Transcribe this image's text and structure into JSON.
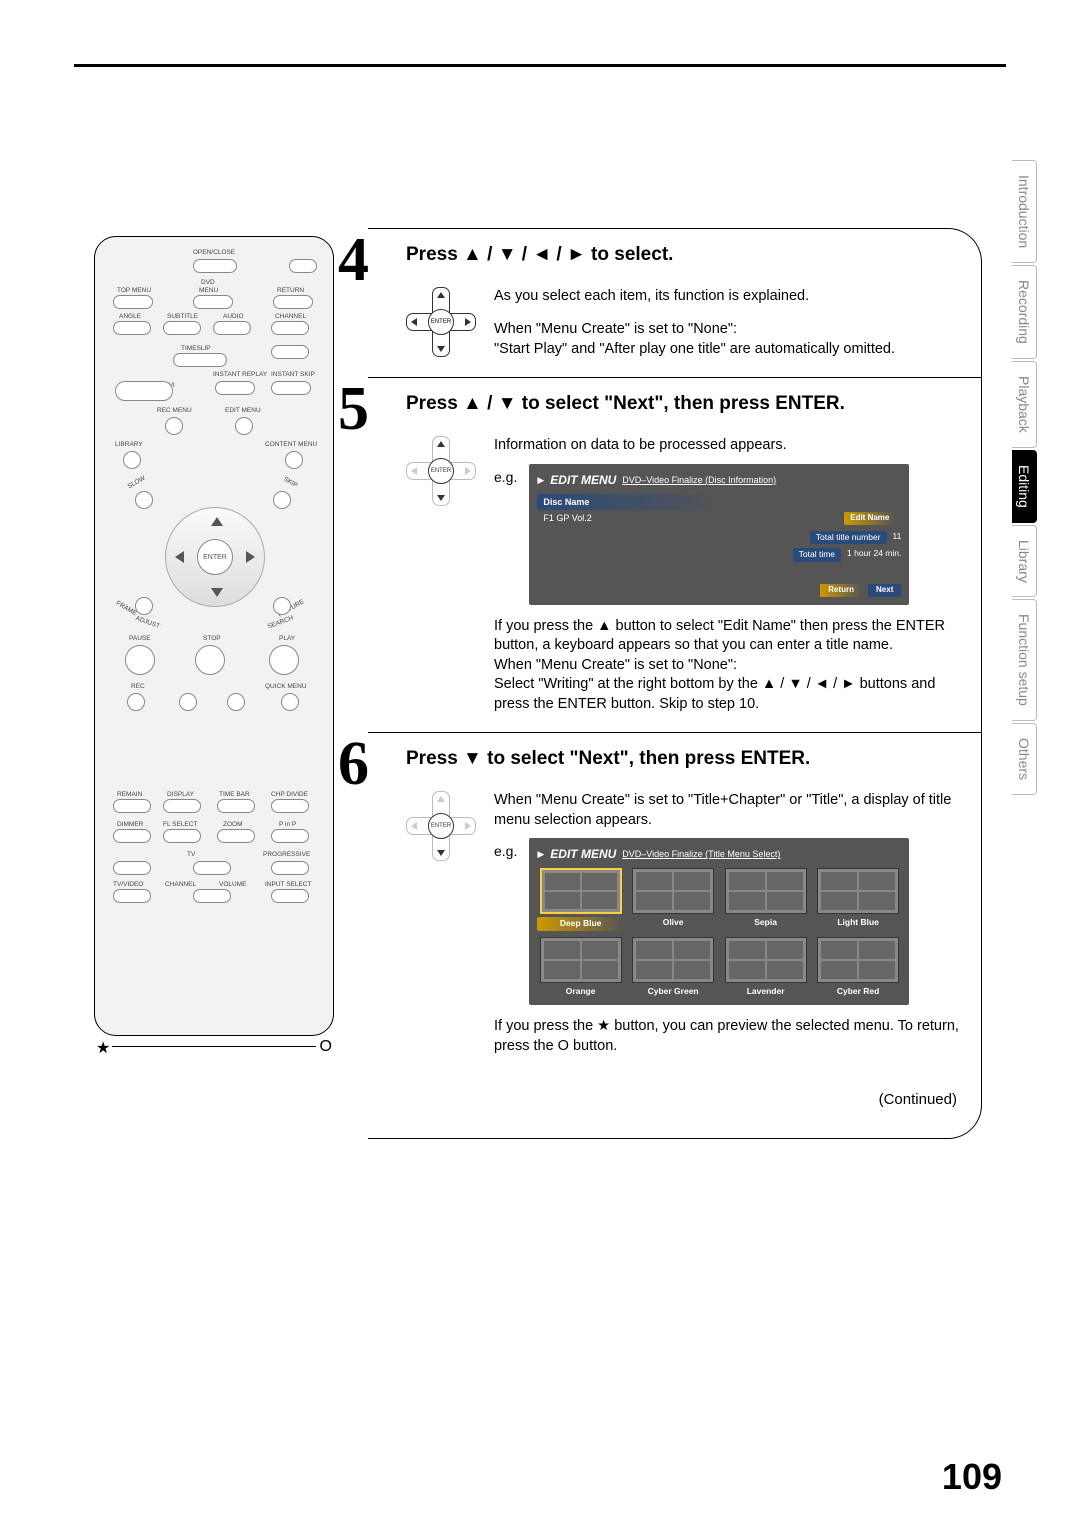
{
  "page_number": "109",
  "side_tabs": [
    "Introduction",
    "Recording",
    "Playback",
    "Editing",
    "Library",
    "Function setup",
    "Others"
  ],
  "active_tab_index": 3,
  "remote": {
    "labels": {
      "open_close": "OPEN/CLOSE",
      "dvd": "DVD",
      "top_menu": "TOP MENU",
      "menu": "MENU",
      "return": "RETURN",
      "angle": "ANGLE",
      "subtitle": "SUBTITLE",
      "audio": "AUDIO",
      "channel": "CHANNEL",
      "timeslip": "TIMESLIP",
      "instant_replay": "INSTANT REPLAY",
      "instant_skip": "INSTANT SKIP",
      "easy_navi": "EASY NAVI",
      "rec_menu": "REC MENU",
      "edit_menu": "EDIT MENU",
      "library": "LIBRARY",
      "content_menu": "CONTENT MENU",
      "slow": "SLOW",
      "skip": "SKIP",
      "enter": "ENTER",
      "frame": "FRAME",
      "adjust": "ADJUST",
      "picture": "PICTURE",
      "search": "SEARCH",
      "pause": "PAUSE",
      "stop": "STOP",
      "play": "PLAY",
      "rec": "REC",
      "quick_menu": "QUICK MENU",
      "remain": "REMAIN",
      "display": "DISPLAY",
      "time_bar": "TIME BAR",
      "chp_divide": "CHP DIVIDE",
      "dimmer": "DIMMER",
      "fl_select": "FL SELECT",
      "zoom": "ZOOM",
      "pinp": "P in P",
      "tv": "TV",
      "progressive": "PROGRESSIVE",
      "tv_video": "TV/VIDEO",
      "channel2": "CHANNEL",
      "volume": "VOLUME",
      "input_select": "INPUT SELECT"
    }
  },
  "steps": {
    "s4": {
      "num": "4",
      "title": "Press ▲ / ▼ / ◄ / ► to select.",
      "body1": "As you select each item, its function is explained.",
      "body2": "When \"Menu Create\" is set to \"None\":",
      "body3": "\"Start Play\" and \"After play one title\" are automatically omitted."
    },
    "s5": {
      "num": "5",
      "title": "Press ▲ / ▼ to select \"Next\", then press ENTER.",
      "body1": "Information on data to be processed appears.",
      "eg": "e.g.",
      "menu": {
        "logo": "EDIT MENU",
        "sub": "DVD–Video Finalize (Disc Information)",
        "disc_name_label": "Disc Name",
        "disc_name_value": "F1 GP Vol.2",
        "edit_name": "Edit Name",
        "total_title_label": "Total title number",
        "total_title_value": "11",
        "total_time_label": "Total time",
        "total_time_value": "1 hour 24 min.",
        "return": "Return",
        "next": "Next"
      },
      "after1": "If you press the ▲ button to select \"Edit Name\" then press the ENTER button, a keyboard appears so that you can enter a title name.",
      "after2": "When \"Menu Create\" is set to \"None\":",
      "after3": "Select \"Writing\" at the right bottom by the ▲ / ▼ / ◄ / ► buttons and press the ENTER button. Skip to step 10."
    },
    "s6": {
      "num": "6",
      "title": "Press ▼ to select \"Next\", then press ENTER.",
      "body1": "When \"Menu Create\" is set to \"Title+Chapter\" or \"Title\", a display of title menu selection appears.",
      "eg": "e.g.",
      "menu": {
        "logo": "EDIT MENU",
        "sub": "DVD–Video Finalize (Title Menu Select)",
        "themes": [
          "Deep Blue",
          "Olive",
          "Sepia",
          "Light Blue",
          "Orange",
          "Cyber Green",
          "Lavender",
          "Cyber Red"
        ],
        "selected_index": 0
      },
      "after1": "If you press the ★ button, you can preview the selected menu. To return, press the O button."
    },
    "continued": "(Continued)"
  },
  "star_o": {
    "star": "★",
    "o": "O"
  }
}
